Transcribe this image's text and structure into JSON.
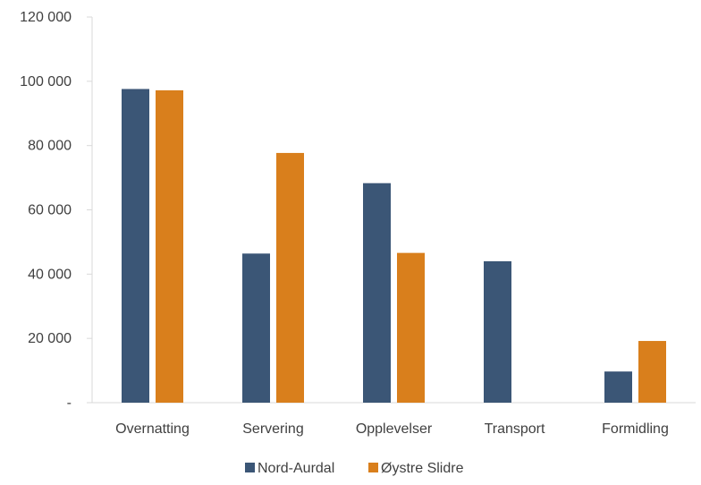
{
  "chart_data": {
    "type": "bar",
    "categories": [
      "Overnatting",
      "Servering",
      "Opplevelser",
      "Transport",
      "Formidling"
    ],
    "series": [
      {
        "name": "Nord-Aurdal",
        "color": "#3b5676",
        "values": [
          97600,
          46400,
          68300,
          44000,
          9700
        ]
      },
      {
        "name": "Øystre Slidre",
        "color": "#d97f1c",
        "values": [
          97200,
          77700,
          46600,
          0,
          19200
        ]
      }
    ],
    "ylim": [
      0,
      120000
    ],
    "yticks": [
      {
        "value": 0,
        "label": "-"
      },
      {
        "value": 20000,
        "label": "20 000"
      },
      {
        "value": 40000,
        "label": "40 000"
      },
      {
        "value": 60000,
        "label": "60 000"
      },
      {
        "value": 80000,
        "label": "80 000"
      },
      {
        "value": 100000,
        "label": "100 000"
      },
      {
        "value": 120000,
        "label": "120 000"
      }
    ],
    "grid": false,
    "legend": "bottom"
  }
}
